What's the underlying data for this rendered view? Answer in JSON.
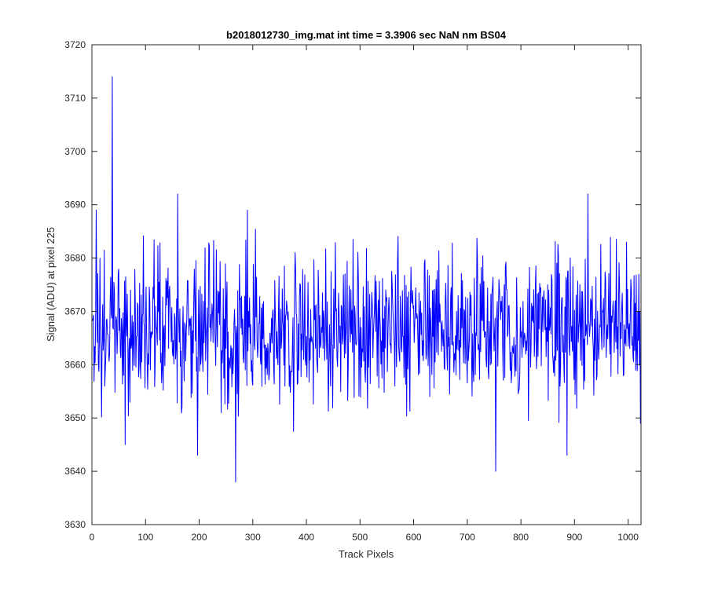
{
  "chart_data": {
    "type": "line",
    "title": "b2018012730_img.mat int time = 3.3906 sec  NaN nm BS04",
    "xlabel": "Track Pixels",
    "ylabel": "Signal (ADU) at pixel 225",
    "xlim": [
      0,
      1024
    ],
    "ylim": [
      3630,
      3720
    ],
    "xticks": [
      0,
      100,
      200,
      300,
      400,
      500,
      600,
      700,
      800,
      900,
      1000
    ],
    "yticks": [
      3630,
      3640,
      3650,
      3660,
      3670,
      3680,
      3690,
      3700,
      3710,
      3720
    ],
    "grid": false,
    "legend": "none",
    "series": [
      {
        "color": "#0000ff",
        "x_start": 1,
        "x_step": 1,
        "points": 1024,
        "mean": 3667,
        "noise_amplitude": 7,
        "values_summary": "noisy trace around 3667 ADU, mostly between 3645 and 3690",
        "notable_points": [
          {
            "x": 8,
            "y": 3689
          },
          {
            "x": 38,
            "y": 3714
          },
          {
            "x": 62,
            "y": 3645
          },
          {
            "x": 160,
            "y": 3692
          },
          {
            "x": 197,
            "y": 3643
          },
          {
            "x": 268,
            "y": 3638
          },
          {
            "x": 290,
            "y": 3689
          },
          {
            "x": 753,
            "y": 3640
          },
          {
            "x": 886,
            "y": 3643
          },
          {
            "x": 925,
            "y": 3692
          },
          {
            "x": 1023,
            "y": 3649
          }
        ]
      }
    ]
  }
}
